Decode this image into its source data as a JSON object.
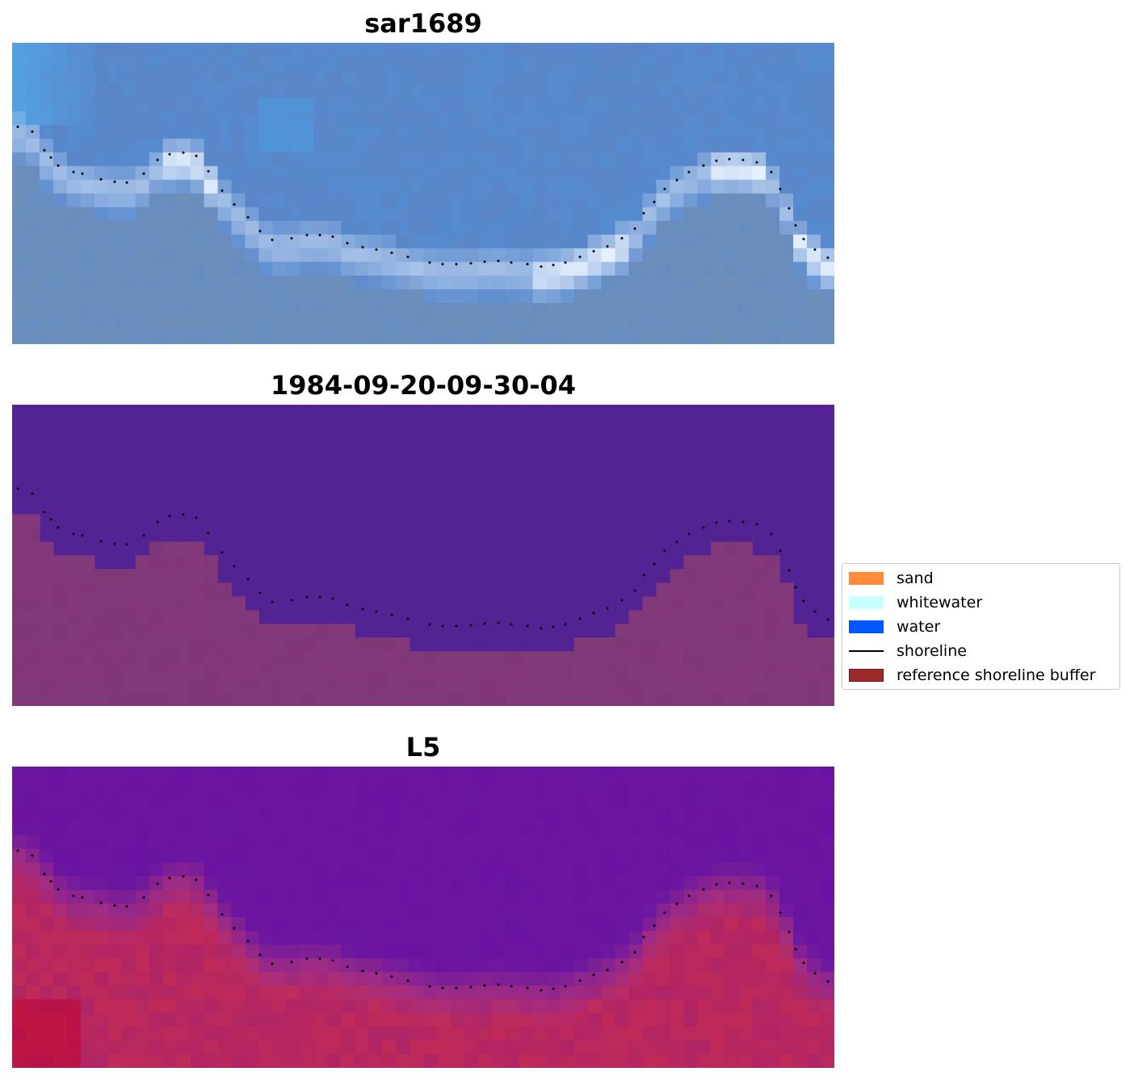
{
  "panels": [
    {
      "title": "sar1689",
      "type": "rgb-image"
    },
    {
      "title": "1984-09-20-09-30-04",
      "type": "classified-image"
    },
    {
      "title": "L5",
      "type": "index-image"
    }
  ],
  "legend": {
    "items": [
      {
        "label": "sand",
        "color": "#ff8c3a",
        "kind": "patch"
      },
      {
        "label": "whitewater",
        "color": "#c8ffff",
        "kind": "patch"
      },
      {
        "label": "water",
        "color": "#0057ff",
        "kind": "patch"
      },
      {
        "label": "shoreline",
        "color": "#000000",
        "kind": "line"
      },
      {
        "label": "reference shoreline buffer",
        "color": "#9b2c2c",
        "kind": "patch"
      }
    ]
  },
  "colors": {
    "rgb_water": "#5a86c8",
    "rgb_whitewater": "#e8f2ff",
    "class_water": "#532394",
    "class_buffer": "#7f3778",
    "index_water": "#6a16a0",
    "index_land": "#c02a58",
    "shoreline": "#000000"
  }
}
